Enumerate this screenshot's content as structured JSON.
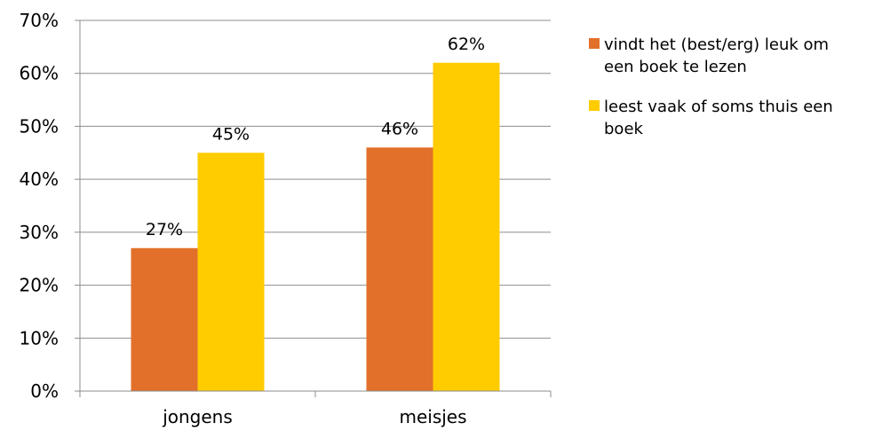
{
  "chart_data": {
    "type": "bar",
    "categories": [
      "jongens",
      "meisjes"
    ],
    "series": [
      {
        "name": "vindt het (best/erg) leuk om een boek te lezen",
        "legend_lines": [
          "vindt het (best/erg) leuk om",
          "een boek te lezen"
        ],
        "values": [
          27,
          46
        ],
        "labels": [
          "27%",
          "46%"
        ],
        "color": "#E2702A"
      },
      {
        "name": "leest vaak of soms thuis een boek",
        "legend_lines": [
          "leest vaak of soms thuis een",
          "boek"
        ],
        "values": [
          45,
          62
        ],
        "labels": [
          "45%",
          "62%"
        ],
        "color": "#FFCC00"
      }
    ],
    "y_ticks": [
      "0%",
      "10%",
      "20%",
      "30%",
      "40%",
      "50%",
      "60%",
      "70%"
    ],
    "ylim": [
      0,
      70
    ],
    "ytick_step": 10,
    "grid": true,
    "legend_position": "right",
    "title": "",
    "xlabel": "",
    "ylabel": ""
  },
  "colors": {
    "grid": "#8C8C8C",
    "axis": "#8C8C8C"
  }
}
